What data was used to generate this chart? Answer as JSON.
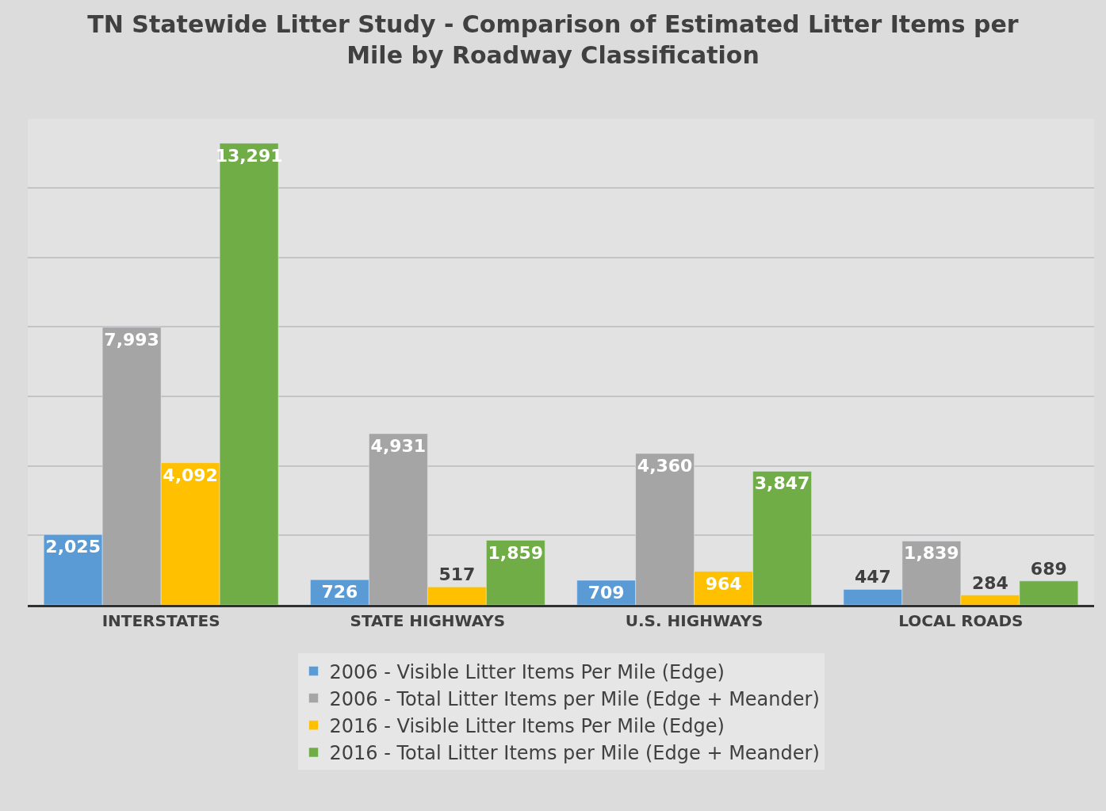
{
  "chart_data": {
    "type": "bar",
    "title": "TN Statewide Litter Study - Comparison of Estimated Litter Items per\nMile by Roadway Classification",
    "categories": [
      "INTERSTATES",
      "STATE HIGHWAYS",
      "U.S. HIGHWAYS",
      "LOCAL ROADS"
    ],
    "series": [
      {
        "name": "2006 - Visible Litter Items Per Mile (Edge)",
        "color": "#5b9bd5",
        "values": [
          2025,
          726,
          709,
          447
        ],
        "value_labels": [
          "2,025",
          "726",
          "709",
          "447"
        ]
      },
      {
        "name": "2006 - Total Litter Items per Mile (Edge + Meander)",
        "color": "#a5a5a5",
        "values": [
          7993,
          4931,
          4360,
          1839
        ],
        "value_labels": [
          "7,993",
          "4,931",
          "4,360",
          "1,839"
        ]
      },
      {
        "name": "2016 - Visible Litter Items Per Mile (Edge)",
        "color": "#ffc000",
        "values": [
          4092,
          517,
          964,
          284
        ],
        "value_labels": [
          "4,092",
          "517",
          "964",
          "284"
        ]
      },
      {
        "name": "2016 - Total Litter Items per Mile (Edge + Meander)",
        "color": "#70ad47",
        "values": [
          13291,
          1859,
          3847,
          689
        ],
        "value_labels": [
          "13,291",
          "1,859",
          "3,847",
          "689"
        ]
      }
    ],
    "tick_labels": "x",
    "grid": "y",
    "legend": "bottom"
  }
}
